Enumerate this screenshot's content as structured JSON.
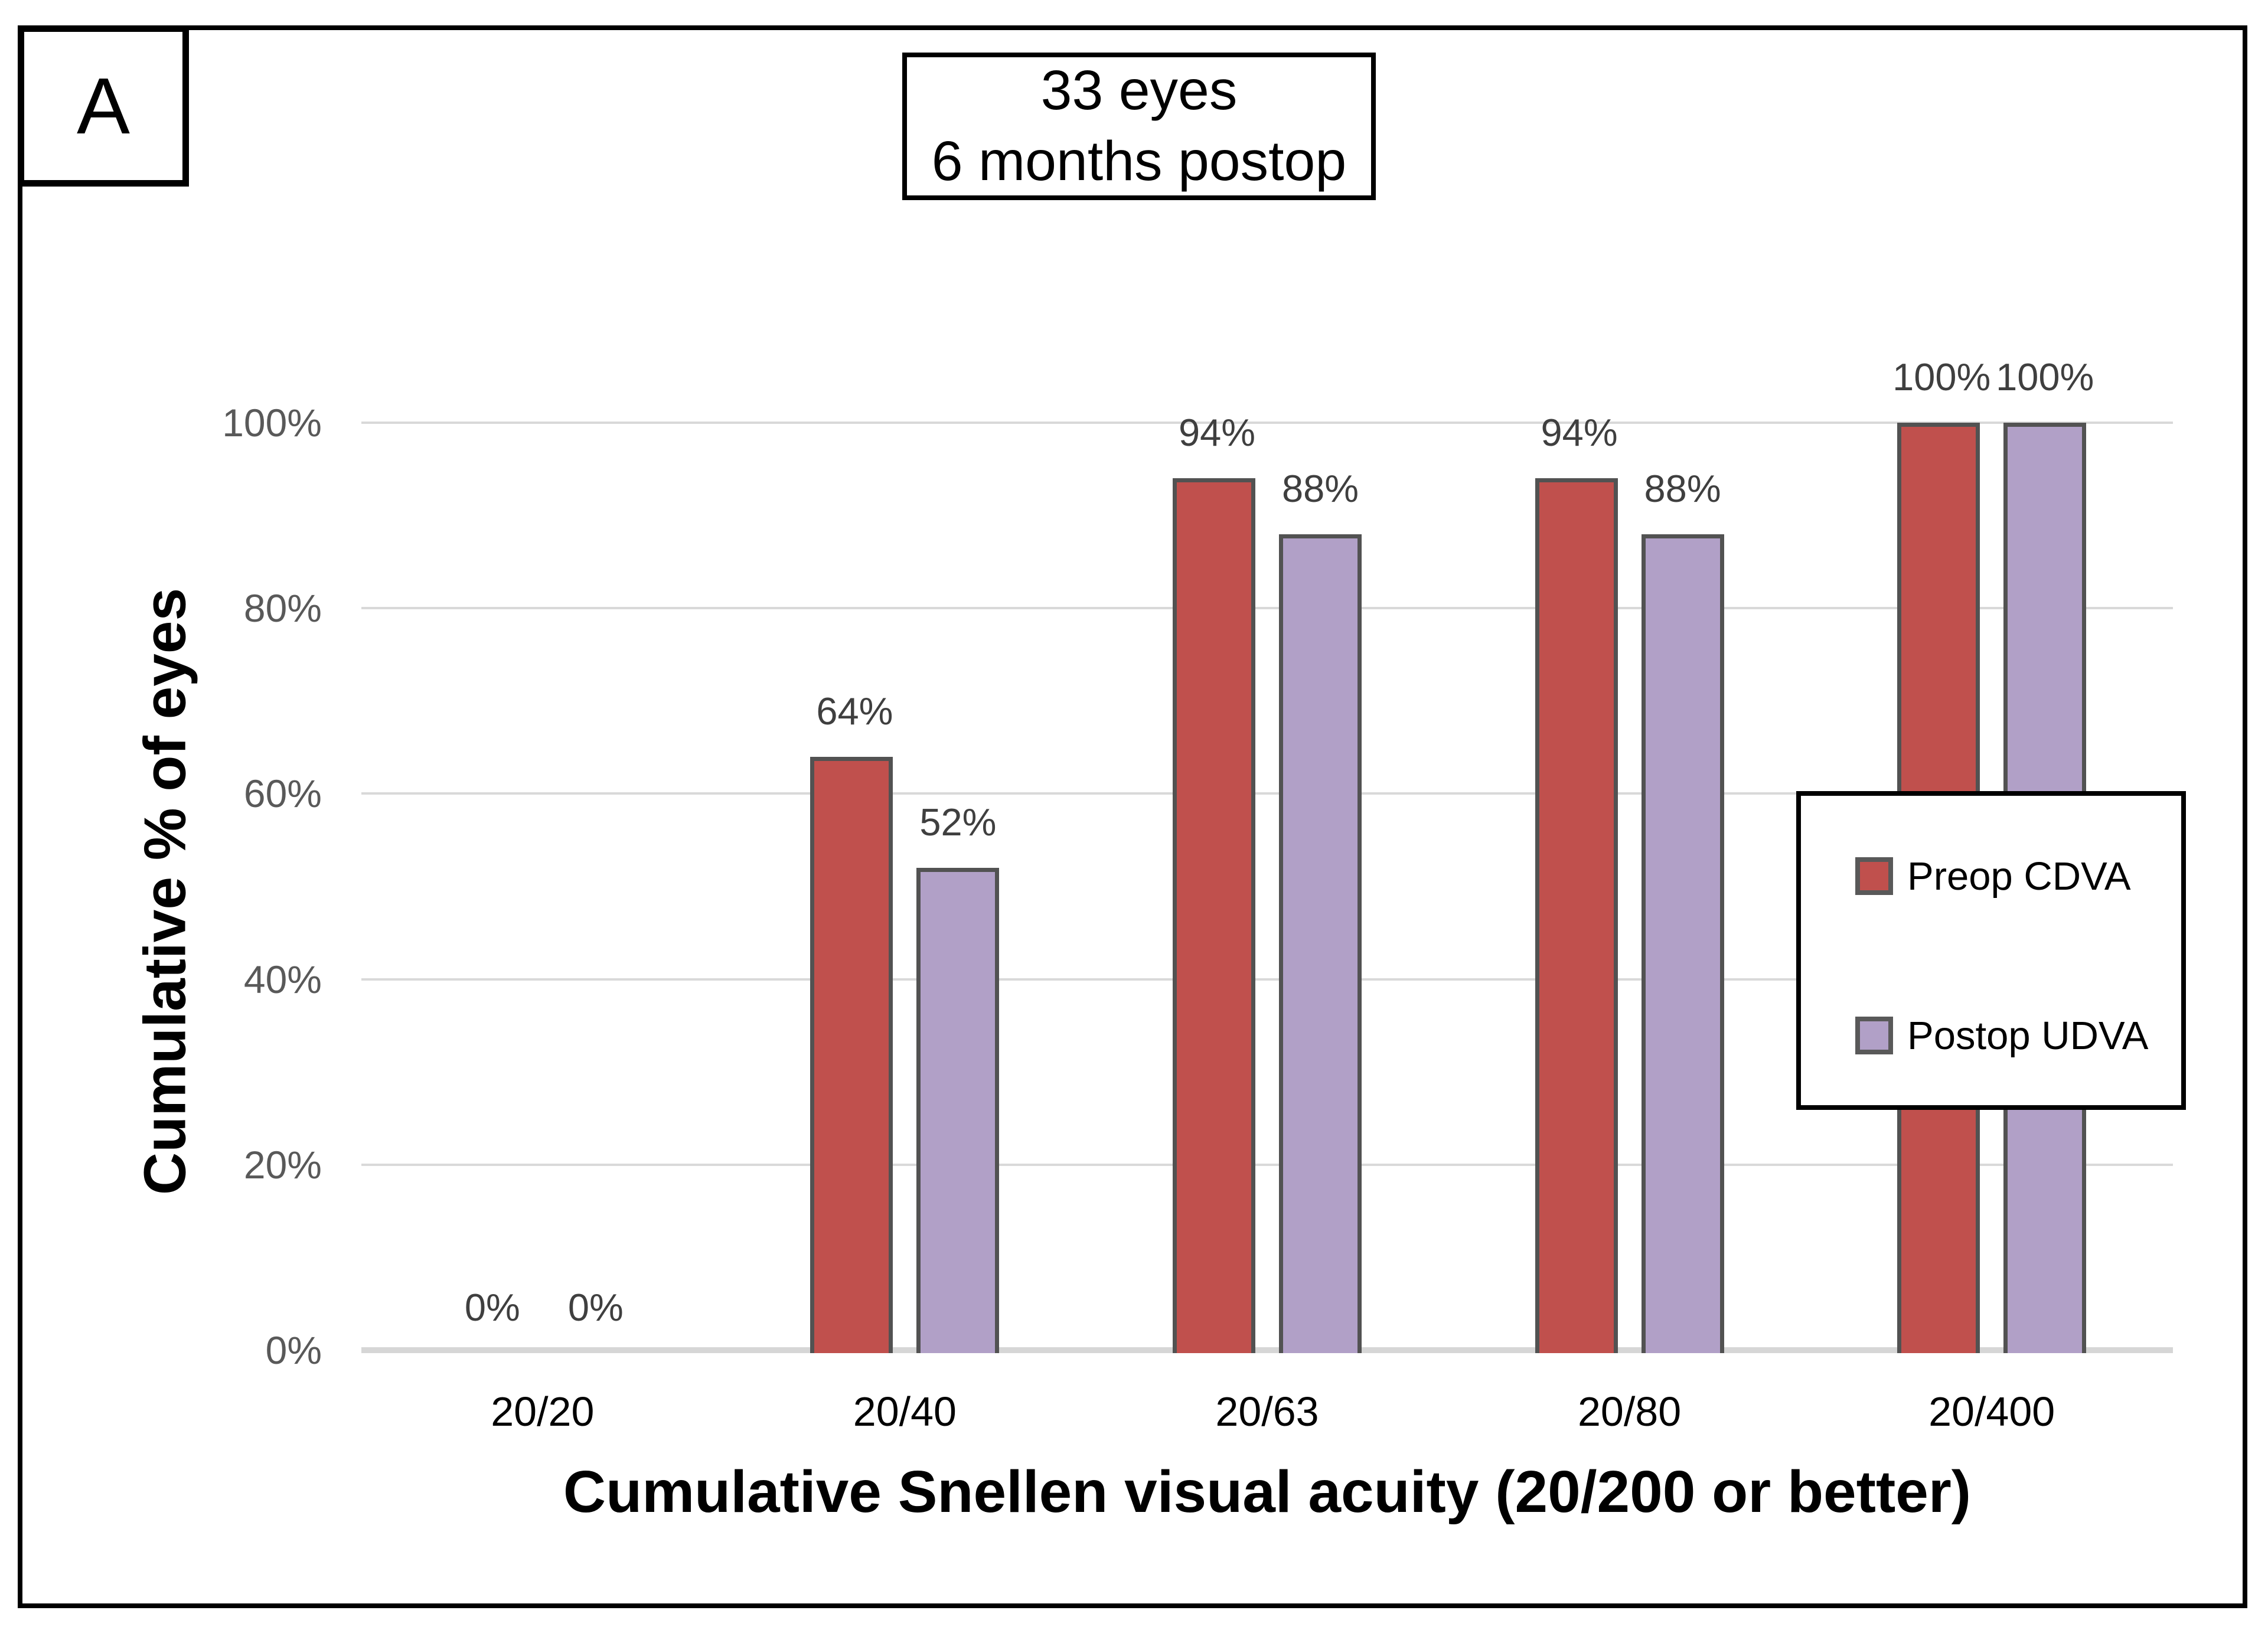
{
  "panel_label": "A",
  "title": {
    "line1": "33 eyes",
    "line2": "6 months postop"
  },
  "y_axis": {
    "title": "Cumulative % of eyes",
    "ticks": [
      "0%",
      "20%",
      "40%",
      "60%",
      "80%",
      "100%"
    ],
    "tick_values": [
      0,
      20,
      40,
      60,
      80,
      100
    ]
  },
  "x_axis": {
    "title": "Cumulative Snellen visual acuity (20/200 or better)"
  },
  "legend": [
    {
      "label": "Preop CDVA",
      "color": "#C0504D"
    },
    {
      "label": "Postop UDVA",
      "color": "#B1A0C7"
    }
  ],
  "colors": {
    "preop_fill": "#C0504D",
    "postop_fill": "#B1A0C7",
    "bar_border": "#525252",
    "gridline": "#D9D9D9",
    "tick_text": "#595959",
    "data_label_text": "#3F3F3F"
  },
  "chart_data": {
    "type": "bar",
    "categories": [
      "20/20",
      "20/40",
      "20/63",
      "20/80",
      "20/400"
    ],
    "series": [
      {
        "name": "Preop CDVA",
        "color": "#C0504D",
        "values": [
          0,
          64,
          94,
          94,
          100
        ],
        "labels": [
          "0%",
          "64%",
          "94%",
          "94%",
          "100%"
        ]
      },
      {
        "name": "Postop UDVA",
        "color": "#B1A0C7",
        "values": [
          0,
          52,
          88,
          88,
          100
        ],
        "labels": [
          "0%",
          "52%",
          "88%",
          "88%",
          "100%"
        ]
      }
    ],
    "title": "33 eyes 6 months postop",
    "xlabel": "Cumulative Snellen visual acuity (20/200 or better)",
    "ylabel": "Cumulative % of eyes",
    "ylim": [
      0,
      100
    ],
    "grid": true,
    "legend_position": "middle-right"
  }
}
